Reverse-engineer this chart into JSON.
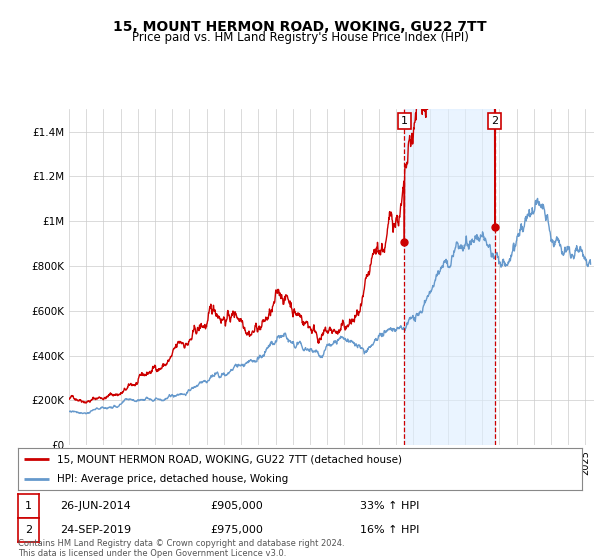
{
  "title": "15, MOUNT HERMON ROAD, WOKING, GU22 7TT",
  "subtitle": "Price paid vs. HM Land Registry's House Price Index (HPI)",
  "hpi_label": "HPI: Average price, detached house, Woking",
  "price_label": "15, MOUNT HERMON ROAD, WOKING, GU22 7TT (detached house)",
  "footer": "Contains HM Land Registry data © Crown copyright and database right 2024.\nThis data is licensed under the Open Government Licence v3.0.",
  "sale1": {
    "date": "26-JUN-2014",
    "price": 905000,
    "hpi_pct": "33% ↑ HPI",
    "label": "1"
  },
  "sale2": {
    "date": "24-SEP-2019",
    "price": 975000,
    "hpi_pct": "16% ↑ HPI",
    "label": "2"
  },
  "sale1_x": 2014.49,
  "sale2_x": 2019.73,
  "sale1_price": 905000,
  "sale2_price": 975000,
  "ylim": [
    0,
    1500000
  ],
  "xlim_start": 1995,
  "xlim_end": 2025.5,
  "red_color": "#cc0000",
  "blue_color": "#6699cc",
  "background_color": "#ffffff",
  "grid_color": "#cccccc",
  "shade_color": "#ddeeff"
}
